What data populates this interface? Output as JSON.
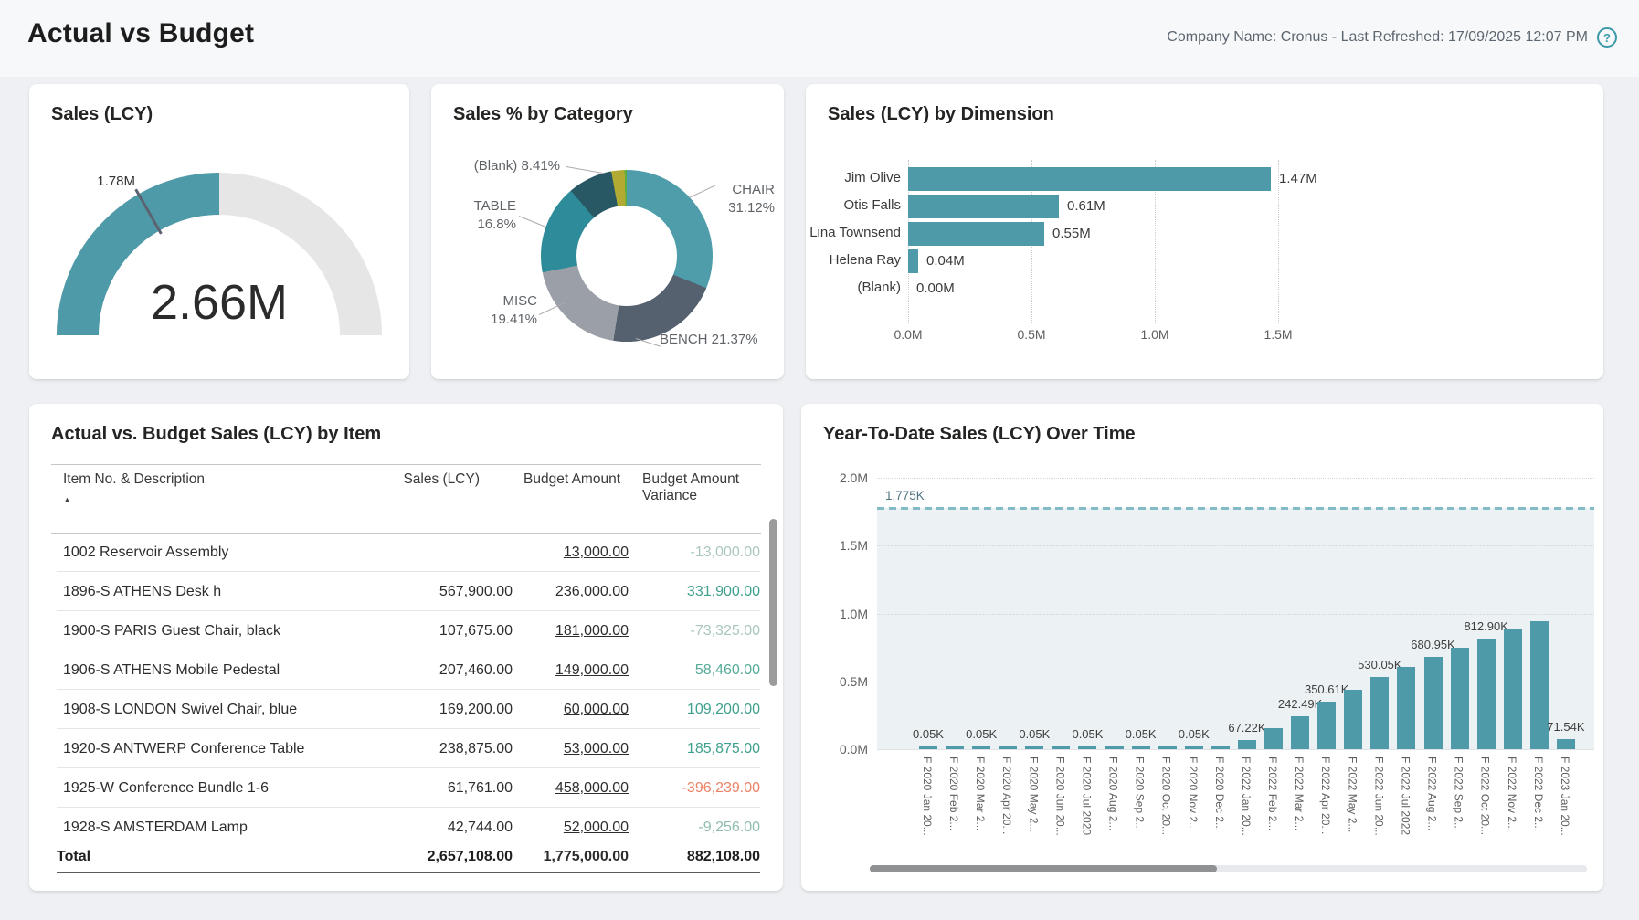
{
  "header": {
    "title": "Actual vs Budget",
    "meta": "Company Name: Cronus - Last Refreshed: 17/09/2025 12:07 PM",
    "help_icon": "?"
  },
  "gauge": {
    "title": "Sales (LCY)",
    "value": 2.66,
    "max": 5.32,
    "target": 1.78,
    "value_label": "2.66M",
    "target_label": "1.78M",
    "fill_color": "#4f9aa8",
    "track_color": "#e6e6e6",
    "marker_color": "#5c6370"
  },
  "donut": {
    "title": "Sales % by Category",
    "slices": [
      {
        "name": "CHAIR",
        "pct": 31.12,
        "color": "#4f9dab",
        "label_lines": [
          "CHAIR",
          "31.12%"
        ]
      },
      {
        "name": "BENCH",
        "pct": 21.37,
        "color": "#56616f",
        "label_lines": [
          "BENCH 21.37%"
        ]
      },
      {
        "name": "MISC",
        "pct": 19.41,
        "color": "#9ba0a8",
        "label_lines": [
          "MISC",
          "19.41%"
        ]
      },
      {
        "name": "TABLE",
        "pct": 16.8,
        "color": "#2e8c9a",
        "label_lines": [
          "TABLE",
          "16.8%"
        ]
      },
      {
        "name": "(Blank)",
        "pct": 8.41,
        "color": "#275863",
        "label_lines": [
          "(Blank) 8.41%"
        ]
      },
      {
        "name": "other-olive",
        "pct": 2.49,
        "color": "#b1ab33",
        "label_lines": []
      },
      {
        "name": "other-green",
        "pct": 0.4,
        "color": "#5fae3d",
        "label_lines": []
      }
    ]
  },
  "dimension": {
    "title": "Sales (LCY) by Dimension",
    "bar_color": "#4f9aa8",
    "x_ticks": [
      "0.0M",
      "0.5M",
      "1.0M",
      "1.5M"
    ],
    "bars": [
      {
        "label": "Jim Olive",
        "value": 1.47,
        "value_label": "1.47M"
      },
      {
        "label": "Otis Falls",
        "value": 0.61,
        "value_label": "0.61M"
      },
      {
        "label": "Lina Townsend",
        "value": 0.55,
        "value_label": "0.55M"
      },
      {
        "label": "Helena Ray",
        "value": 0.04,
        "value_label": "0.04M"
      },
      {
        "label": "(Blank)",
        "value": 0.0,
        "value_label": "0.00M"
      }
    ]
  },
  "table": {
    "title": "Actual vs. Budget Sales (LCY) by Item",
    "sort_icon": "▲",
    "columns": [
      "Item No. & Description",
      "Sales (LCY)",
      "Budget Amount",
      "Budget Amount Variance"
    ],
    "rows": [
      {
        "item": "1002 Reservoir Assembly",
        "sales": "",
        "budget": "13,000.00",
        "variance": "-13,000.00",
        "variance_color": "#a9c7bb"
      },
      {
        "item": "1896-S ATHENS Desk h",
        "sales": "567,900.00",
        "budget": "236,000.00",
        "variance": "331,900.00",
        "variance_color": "#3fa08e"
      },
      {
        "item": "1900-S PARIS Guest Chair, black",
        "sales": "107,675.00",
        "budget": "181,000.00",
        "variance": "-73,325.00",
        "variance_color": "#a9c7bb"
      },
      {
        "item": "1906-S ATHENS Mobile Pedestal",
        "sales": "207,460.00",
        "budget": "149,000.00",
        "variance": "58,460.00",
        "variance_color": "#55ab97"
      },
      {
        "item": "1908-S LONDON Swivel Chair, blue",
        "sales": "169,200.00",
        "budget": "60,000.00",
        "variance": "109,200.00",
        "variance_color": "#3fa08e"
      },
      {
        "item": "1920-S ANTWERP Conference Table",
        "sales": "238,875.00",
        "budget": "53,000.00",
        "variance": "185,875.00",
        "variance_color": "#3fa08e"
      },
      {
        "item": "1925-W Conference Bundle 1-6",
        "sales": "61,761.00",
        "budget": "458,000.00",
        "variance": "-396,239.00",
        "variance_color": "#ec8266"
      },
      {
        "item": "1928-S AMSTERDAM Lamp",
        "sales": "42,744.00",
        "budget": "52,000.00",
        "variance": "-9,256.00",
        "variance_color": "#8fbcac"
      }
    ],
    "total": {
      "label": "Total",
      "sales": "2,657,108.00",
      "budget": "1,775,000.00",
      "variance": "882,108.00"
    }
  },
  "ytd": {
    "title": "Year-To-Date Sales (LCY) Over Time",
    "bar_color": "#4f9aa8",
    "y_ticks": [
      "2.0M",
      "1.5M",
      "1.0M",
      "0.5M",
      "0.0M"
    ],
    "y_max_k": 2000,
    "ref_line": {
      "label": "1,775K",
      "value_k": 1775
    },
    "bars": [
      {
        "x": "F 2020 Jan 20...",
        "value_k": 0.05,
        "label": "0.05K"
      },
      {
        "x": "F 2020 Feb 2...",
        "value_k": 0.05,
        "label": ""
      },
      {
        "x": "F 2020 Mar 2...",
        "value_k": 0.05,
        "label": "0.05K"
      },
      {
        "x": "F 2020 Apr 20...",
        "value_k": 0.05,
        "label": ""
      },
      {
        "x": "F 2020 May 2...",
        "value_k": 0.05,
        "label": "0.05K"
      },
      {
        "x": "F 2020 Jun 20...",
        "value_k": 0.05,
        "label": ""
      },
      {
        "x": "F 2020 Jul 2020",
        "value_k": 0.05,
        "label": "0.05K"
      },
      {
        "x": "F 2020 Aug 2...",
        "value_k": 0.05,
        "label": ""
      },
      {
        "x": "F 2020 Sep 2...",
        "value_k": 0.05,
        "label": "0.05K"
      },
      {
        "x": "F 2020 Oct 20...",
        "value_k": 0.05,
        "label": ""
      },
      {
        "x": "F 2020 Nov 2...",
        "value_k": 0.05,
        "label": "0.05K"
      },
      {
        "x": "F 2020 Dec 2...",
        "value_k": 0.05,
        "label": ""
      },
      {
        "x": "F 2022 Jan 20...",
        "value_k": 67.22,
        "label": "67.22K"
      },
      {
        "x": "F 2022 Feb 2...",
        "value_k": 155.0,
        "label": ""
      },
      {
        "x": "F 2022 Mar 2...",
        "value_k": 242.49,
        "label": "242.49K"
      },
      {
        "x": "F 2022 Apr 20...",
        "value_k": 350.61,
        "label": "350.61K"
      },
      {
        "x": "F 2022 May 2...",
        "value_k": 440.0,
        "label": ""
      },
      {
        "x": "F 2022 Jun 20...",
        "value_k": 530.05,
        "label": "530.05K"
      },
      {
        "x": "F 2022 Jul 2022",
        "value_k": 605.0,
        "label": ""
      },
      {
        "x": "F 2022 Aug 2...",
        "value_k": 680.95,
        "label": "680.95K"
      },
      {
        "x": "F 2022 Sep 2...",
        "value_k": 745.0,
        "label": ""
      },
      {
        "x": "F 2022 Oct 20...",
        "value_k": 812.9,
        "label": "812.90K"
      },
      {
        "x": "F 2022 Nov 2...",
        "value_k": 880.0,
        "label": ""
      },
      {
        "x": "F 2022 Dec 2...",
        "value_k": 945.0,
        "label": ""
      },
      {
        "x": "F 2023 Jan 20...",
        "value_k": 71.54,
        "label": "71.54K"
      }
    ]
  },
  "chart_data": [
    {
      "type": "gauge",
      "title": "Sales (LCY)",
      "value": 2.66,
      "target": 1.78,
      "min": 0,
      "max": 5.32,
      "unit": "M"
    },
    {
      "type": "pie",
      "title": "Sales % by Category",
      "labels": [
        "CHAIR",
        "BENCH",
        "MISC",
        "TABLE",
        "(Blank)",
        "(unlabeled-olive)",
        "(unlabeled-green)"
      ],
      "values": [
        31.12,
        21.37,
        19.41,
        16.8,
        8.41,
        2.49,
        0.4
      ]
    },
    {
      "type": "bar",
      "orientation": "horizontal",
      "title": "Sales (LCY) by Dimension",
      "categories": [
        "Jim Olive",
        "Otis Falls",
        "Lina Townsend",
        "Helena Ray",
        "(Blank)"
      ],
      "values": [
        1.47,
        0.61,
        0.55,
        0.04,
        0.0
      ],
      "xlabel": "",
      "ylabel": "",
      "xlim": [
        0,
        1.55
      ],
      "grid": "dotted-vertical"
    },
    {
      "type": "table",
      "title": "Actual vs. Budget Sales (LCY) by Item",
      "columns": [
        "Item No. & Description",
        "Sales (LCY)",
        "Budget Amount",
        "Budget Amount Variance"
      ],
      "rows": [
        [
          "1002 Reservoir Assembly",
          null,
          13000.0,
          -13000.0
        ],
        [
          "1896-S ATHENS Desk h",
          567900.0,
          236000.0,
          331900.0
        ],
        [
          "1900-S PARIS Guest Chair, black",
          107675.0,
          181000.0,
          -73325.0
        ],
        [
          "1906-S ATHENS Mobile Pedestal",
          207460.0,
          149000.0,
          58460.0
        ],
        [
          "1908-S LONDON Swivel Chair, blue",
          169200.0,
          60000.0,
          109200.0
        ],
        [
          "1920-S ANTWERP Conference Table",
          238875.0,
          53000.0,
          185875.0
        ],
        [
          "1925-W Conference Bundle 1-6",
          61761.0,
          458000.0,
          -396239.0
        ],
        [
          "1928-S AMSTERDAM Lamp",
          42744.0,
          52000.0,
          -9256.0
        ]
      ],
      "total": [
        "Total",
        2657108.0,
        1775000.0,
        882108.0
      ]
    },
    {
      "type": "bar",
      "title": "Year-To-Date Sales (LCY) Over Time",
      "categories": [
        "F 2020 Jan 2020",
        "F 2020 Feb 2020",
        "F 2020 Mar 2020",
        "F 2020 Apr 2020",
        "F 2020 May 2020",
        "F 2020 Jun 2020",
        "F 2020 Jul 2020",
        "F 2020 Aug 2020",
        "F 2020 Sep 2020",
        "F 2020 Oct 2020",
        "F 2020 Nov 2020",
        "F 2020 Dec 2020",
        "F 2022 Jan 2022",
        "F 2022 Feb 2022",
        "F 2022 Mar 2022",
        "F 2022 Apr 2022",
        "F 2022 May 2022",
        "F 2022 Jun 2022",
        "F 2022 Jul 2022",
        "F 2022 Aug 2022",
        "F 2022 Sep 2022",
        "F 2022 Oct 2022",
        "F 2022 Nov 2022",
        "F 2022 Dec 2022",
        "F 2023 Jan 2023"
      ],
      "values_k": [
        0.05,
        0.05,
        0.05,
        0.05,
        0.05,
        0.05,
        0.05,
        0.05,
        0.05,
        0.05,
        0.05,
        0.05,
        67.22,
        155,
        242.49,
        350.61,
        440,
        530.05,
        605,
        680.95,
        745,
        812.9,
        880,
        945,
        71.54
      ],
      "ylabel": "",
      "ylim_m": [
        0,
        2.0
      ],
      "reference_line_k": 1775,
      "grid": "dotted-horizontal"
    }
  ]
}
